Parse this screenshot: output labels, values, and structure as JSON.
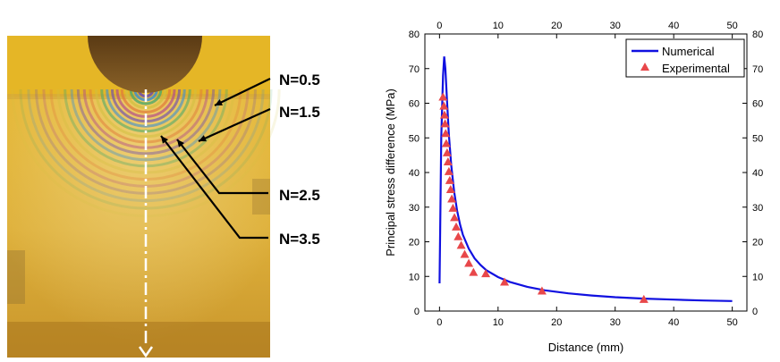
{
  "photo": {
    "labels": [
      "N=0.5",
      "N=1.5",
      "N=2.5",
      "N=3.5"
    ]
  },
  "colors": {
    "numerical": "#1010e0",
    "experimental": "#e8474a",
    "photo_background": "#e3b430",
    "indenter": "#6d4a1c"
  },
  "chart_data": {
    "type": "line",
    "title": "",
    "xlabel": "Distance (mm)",
    "ylabel": "Principal stress difference (MPa)",
    "xlim": [
      -2.5,
      52.5
    ],
    "ylim": [
      0,
      80
    ],
    "x_ticks": [
      0,
      10,
      20,
      30,
      40,
      50
    ],
    "y_ticks": [
      0,
      10,
      20,
      30,
      40,
      50,
      60,
      70,
      80
    ],
    "mirror_axes_top_right": true,
    "legend_position": "top-right",
    "grid": false,
    "series": [
      {
        "name": "Numerical",
        "style": "line",
        "points": [
          [
            0,
            8
          ],
          [
            0.3,
            50
          ],
          [
            0.6,
            68
          ],
          [
            0.8,
            73.5
          ],
          [
            1.0,
            70
          ],
          [
            1.3,
            60
          ],
          [
            1.6,
            51
          ],
          [
            2.0,
            42
          ],
          [
            2.5,
            34.5
          ],
          [
            3,
            29
          ],
          [
            3.5,
            25
          ],
          [
            4,
            22
          ],
          [
            5,
            18
          ],
          [
            6,
            15.2
          ],
          [
            7,
            13.3
          ],
          [
            8,
            11.8
          ],
          [
            10,
            9.8
          ],
          [
            12,
            8.4
          ],
          [
            15,
            7.0
          ],
          [
            18,
            6.0
          ],
          [
            22,
            5.1
          ],
          [
            26,
            4.5
          ],
          [
            30,
            4.0
          ],
          [
            35,
            3.6
          ],
          [
            40,
            3.3
          ],
          [
            45,
            3.05
          ],
          [
            50,
            2.9
          ]
        ]
      },
      {
        "name": "Experimental",
        "style": "triangle-markers",
        "points": [
          [
            0.6,
            61.8
          ],
          [
            0.75,
            59.2
          ],
          [
            0.85,
            56.6
          ],
          [
            0.95,
            54.1
          ],
          [
            1.05,
            51.3
          ],
          [
            1.15,
            48.4
          ],
          [
            1.3,
            45.7
          ],
          [
            1.45,
            43.1
          ],
          [
            1.6,
            40.3
          ],
          [
            1.75,
            37.7
          ],
          [
            1.9,
            35.1
          ],
          [
            2.1,
            32.4
          ],
          [
            2.3,
            29.7
          ],
          [
            2.55,
            27.0
          ],
          [
            2.85,
            24.3
          ],
          [
            3.2,
            21.5
          ],
          [
            3.7,
            19.0
          ],
          [
            4.3,
            16.4
          ],
          [
            5.0,
            13.8
          ],
          [
            5.8,
            11.2
          ],
          [
            7.9,
            10.8
          ],
          [
            11.1,
            8.4
          ],
          [
            17.5,
            5.8
          ],
          [
            34.9,
            3.4
          ]
        ]
      }
    ]
  }
}
